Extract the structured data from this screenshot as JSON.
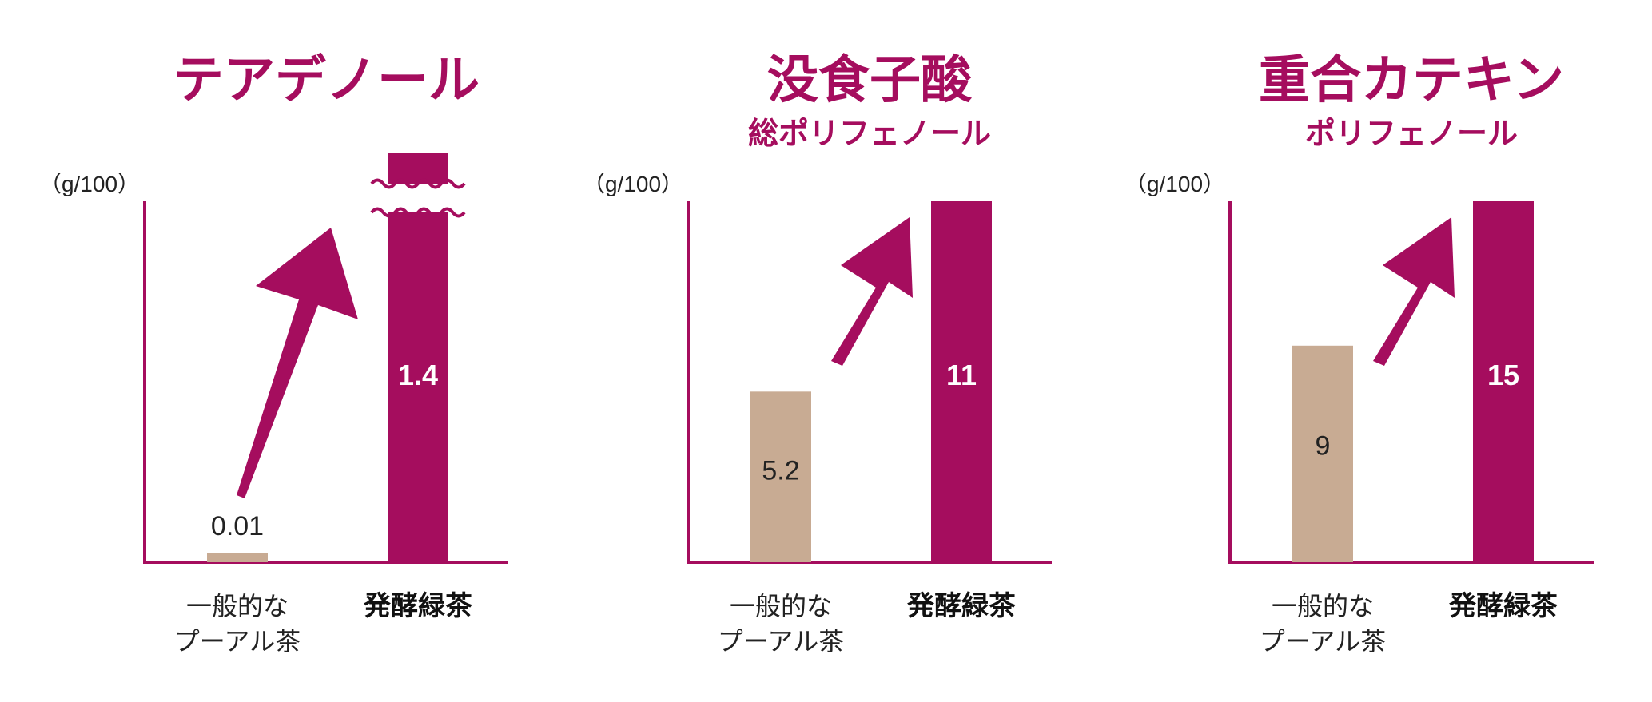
{
  "colors": {
    "accent": "#a50d5e",
    "baseline_bar": "#c8ab93",
    "text": "#222222",
    "bar_label_on_accent": "#ffffff"
  },
  "chart_data": [
    {
      "type": "bar",
      "title": "テアデノール",
      "subtitle": "",
      "unit": "（g/100）",
      "categories": [
        "一般的な\nプーアル茶",
        "発酵緑茶"
      ],
      "category_bold": [
        false,
        true
      ],
      "values": [
        0.01,
        1.4
      ],
      "value_labels": [
        "0.01",
        "1.4"
      ],
      "axis_broken": true,
      "arrow": true
    },
    {
      "type": "bar",
      "title": "没食子酸",
      "subtitle": "総ポリフェノール",
      "unit": "（g/100）",
      "categories": [
        "一般的な\nプーアル茶",
        "発酵緑茶"
      ],
      "category_bold": [
        false,
        true
      ],
      "values": [
        5.2,
        11
      ],
      "value_labels": [
        "5.2",
        "11"
      ],
      "ylim": [
        0,
        11
      ],
      "arrow": true
    },
    {
      "type": "bar",
      "title": "重合カテキン",
      "subtitle": "ポリフェノール",
      "unit": "（g/100）",
      "categories": [
        "一般的な\nプーアル茶",
        "発酵緑茶"
      ],
      "category_bold": [
        false,
        true
      ],
      "values": [
        9,
        15
      ],
      "value_labels": [
        "9",
        "15"
      ],
      "ylim": [
        0,
        15
      ],
      "arrow": true
    }
  ]
}
